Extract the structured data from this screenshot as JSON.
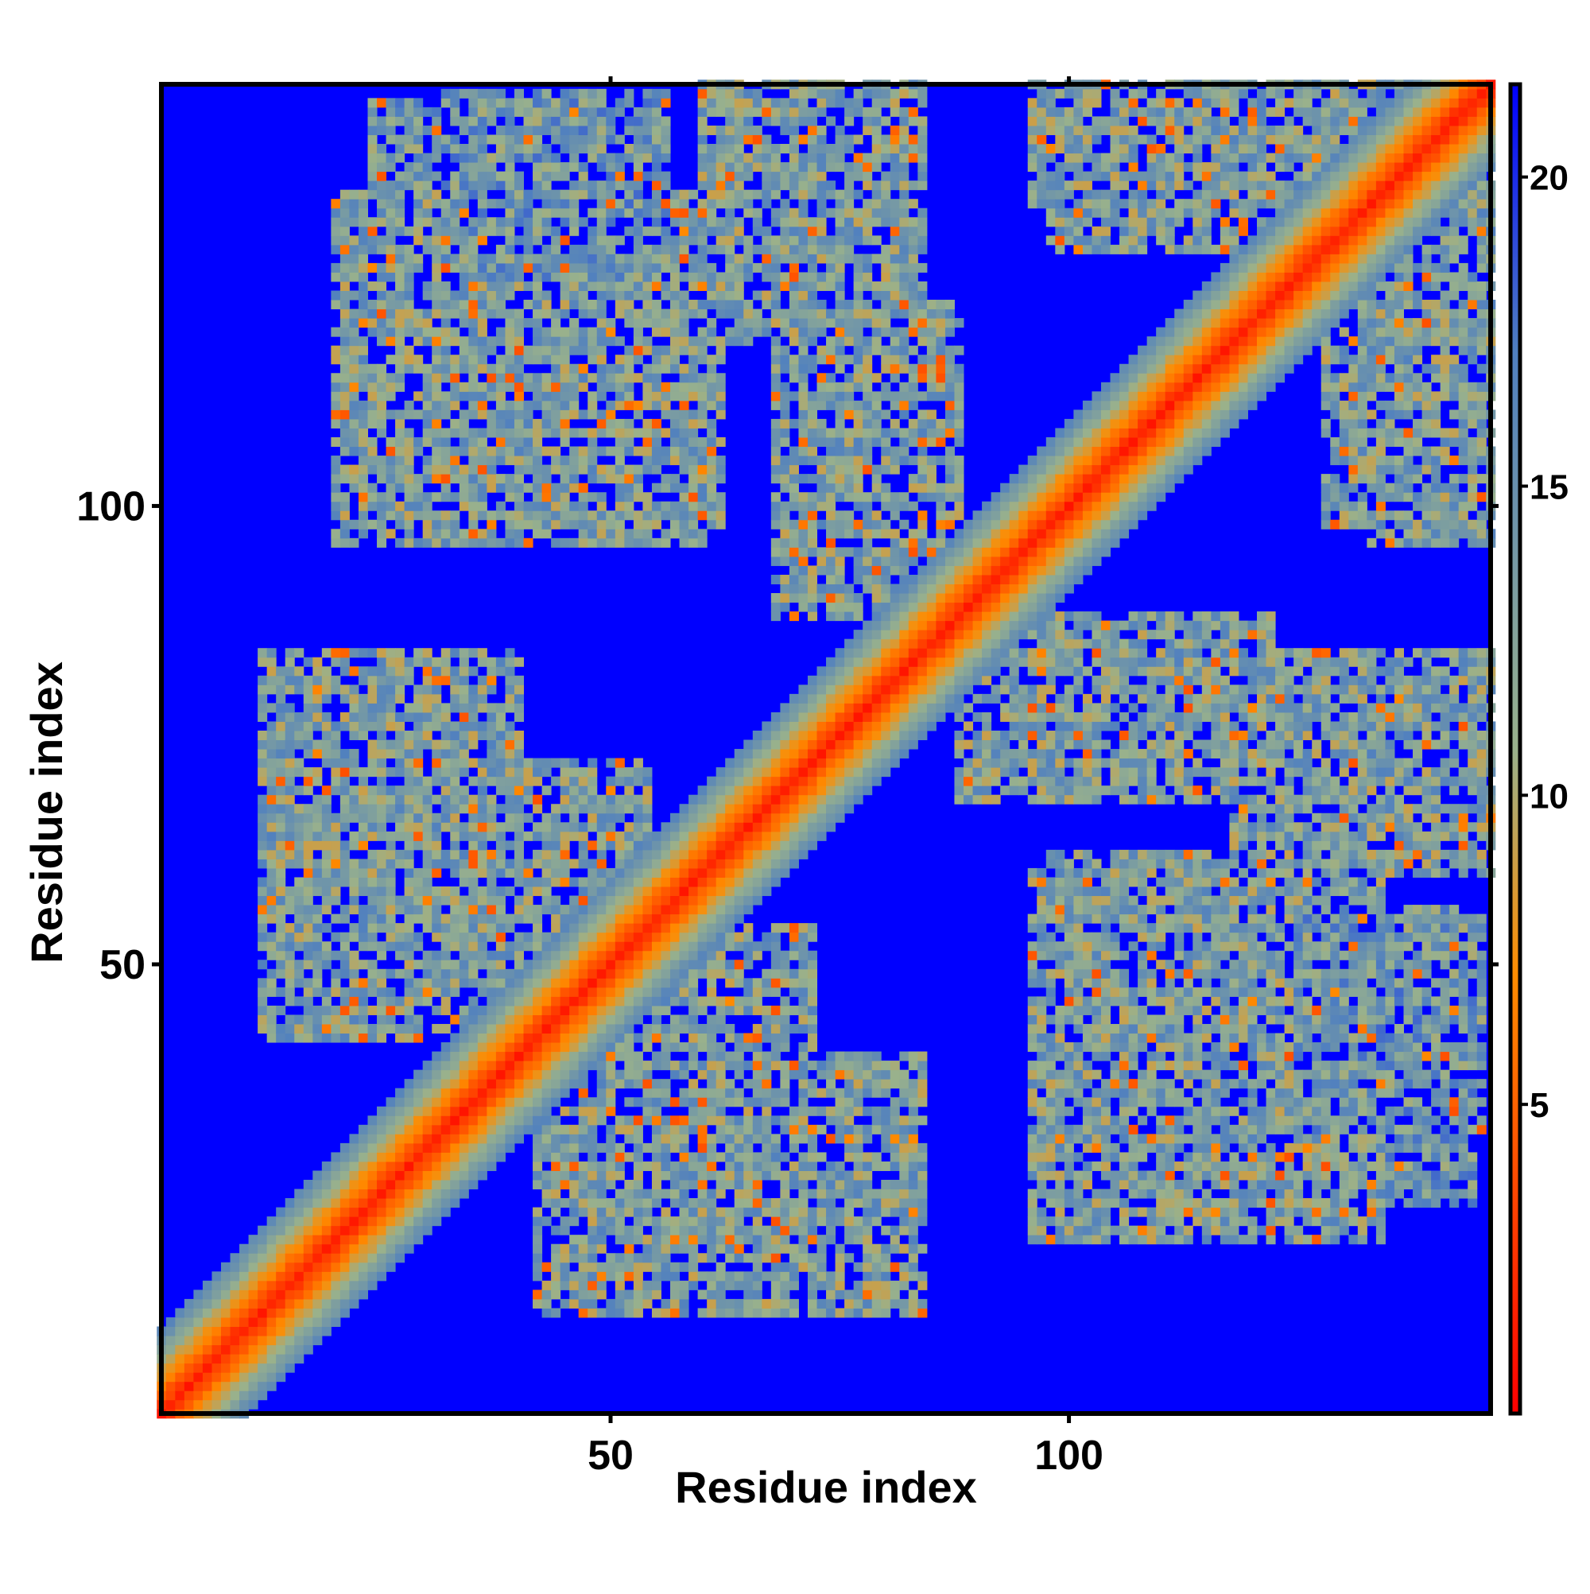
{
  "chart_data": {
    "type": "heatmap",
    "title": "",
    "xlabel": "Residue index",
    "ylabel": "Residue index",
    "n_residues": 146,
    "xlim": [
      1,
      146
    ],
    "ylim": [
      1,
      146
    ],
    "x_ticks": [
      50,
      100
    ],
    "y_ticks": [
      50,
      100
    ],
    "colorbar": {
      "ticks": [
        5,
        10,
        15,
        20
      ],
      "range": [
        0,
        21.5
      ],
      "colors": [
        "#ff0000",
        "#ff8c00",
        "#99b18c",
        "#4f7fc0",
        "#0000ff"
      ],
      "stops": [
        0,
        0.33,
        0.5,
        0.8,
        1
      ]
    },
    "diagonal_band": {
      "center_value": 1.5,
      "slope": 1.6,
      "half_width": 9
    },
    "contact_clusters": [
      {
        "x_range": [
          20,
          38
        ],
        "y_range": [
          46,
          82
        ],
        "value": 13
      },
      {
        "x_range": [
          40,
          54
        ],
        "y_range": [
          40,
          72
        ],
        "value": 13
      },
      {
        "x_range": [
          42,
          84
        ],
        "y_range": [
          12,
          40
        ],
        "value": 13
      },
      {
        "x_range": [
          20,
          62
        ],
        "y_range": [
          98,
          122
        ],
        "value": 13
      },
      {
        "x_range": [
          32,
          56
        ],
        "y_range": [
          125,
          145
        ],
        "value": 14
      },
      {
        "x_range": [
          60,
          80
        ],
        "y_range": [
          120,
          146
        ],
        "value": 13
      },
      {
        "x_range": [
          72,
          88
        ],
        "y_range": [
          96,
          122
        ],
        "value": 13
      },
      {
        "x_range": [
          96,
          122
        ],
        "y_range": [
          133,
          146
        ],
        "value": 13
      },
      {
        "x_range": [
          128,
          146
        ],
        "y_range": [
          98,
          146
        ],
        "value": 13
      },
      {
        "x_range": [
          88,
          122
        ],
        "y_range": [
          68,
          88
        ],
        "value": 13
      },
      {
        "x_range": [
          96,
          134
        ],
        "y_range": [
          20,
          60
        ],
        "value": 13
      },
      {
        "x_range": [
          118,
          146
        ],
        "y_range": [
          60,
          84
        ],
        "value": 13
      },
      {
        "x_range": [
          128,
          144
        ],
        "y_range": [
          24,
          40
        ],
        "value": 14
      }
    ]
  }
}
